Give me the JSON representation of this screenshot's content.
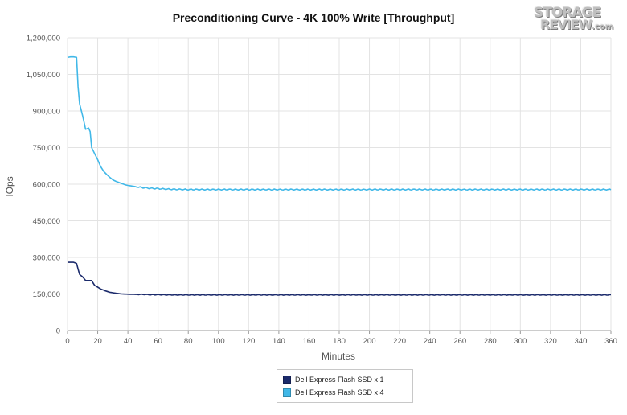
{
  "chart_data": {
    "type": "line",
    "title": "Preconditioning Curve - 4K 100% Write [Throughput]",
    "xlabel": "Minutes",
    "ylabel": "IOps",
    "xlim": [
      0,
      360
    ],
    "ylim": [
      0,
      1200000
    ],
    "xticks": [
      0,
      20,
      40,
      60,
      80,
      100,
      120,
      140,
      160,
      180,
      200,
      220,
      240,
      260,
      280,
      300,
      320,
      340,
      360
    ],
    "yticks": [
      0,
      150000,
      300000,
      450000,
      600000,
      750000,
      900000,
      1050000,
      1200000
    ],
    "ytick_labels": [
      "0",
      "150,000",
      "300,000",
      "450,000",
      "600,000",
      "750,000",
      "900,000",
      "1,050,000",
      "1,200,000"
    ],
    "grid": "vertical-and-horizontal",
    "legend_position": "bottom-center",
    "series": [
      {
        "name": "Dell Express Flash SSD x 1",
        "color": "#1b2a6b",
        "x": [
          0,
          2,
          4,
          6,
          8,
          10,
          12,
          14,
          16,
          18,
          20,
          22,
          25,
          28,
          32,
          36,
          40,
          45,
          50,
          55,
          60,
          70,
          80,
          100,
          120,
          150,
          180,
          210,
          240,
          270,
          300,
          330,
          360
        ],
        "values": [
          280000,
          280000,
          280000,
          275000,
          230000,
          220000,
          205000,
          205000,
          205000,
          185000,
          178000,
          170000,
          163000,
          157000,
          153000,
          150000,
          149000,
          148000,
          148000,
          147000,
          147000,
          146000,
          146000,
          146000,
          146000,
          146000,
          146000,
          146000,
          146000,
          146000,
          146000,
          146000,
          146000
        ]
      },
      {
        "name": "Dell Express Flash SSD x 4",
        "color": "#41b8e8",
        "x": [
          0,
          2,
          4,
          6,
          7,
          8,
          10,
          12,
          14,
          15,
          16,
          18,
          20,
          22,
          24,
          26,
          28,
          30,
          32,
          35,
          38,
          40,
          45,
          50,
          55,
          60,
          65,
          70,
          80,
          100,
          120,
          150,
          180,
          210,
          240,
          270,
          300,
          330,
          360
        ],
        "values": [
          1120000,
          1122000,
          1122000,
          1120000,
          1000000,
          930000,
          880000,
          825000,
          830000,
          815000,
          750000,
          725000,
          700000,
          672000,
          652000,
          640000,
          628000,
          618000,
          612000,
          605000,
          598000,
          595000,
          590000,
          586000,
          583000,
          582000,
          580000,
          579000,
          578000,
          578000,
          578000,
          578000,
          578000,
          578000,
          578000,
          578000,
          578000,
          578000,
          578000
        ]
      }
    ]
  },
  "watermark": {
    "line1": "STORAGE",
    "line2": "REVIEW",
    "suffix": ".com"
  }
}
